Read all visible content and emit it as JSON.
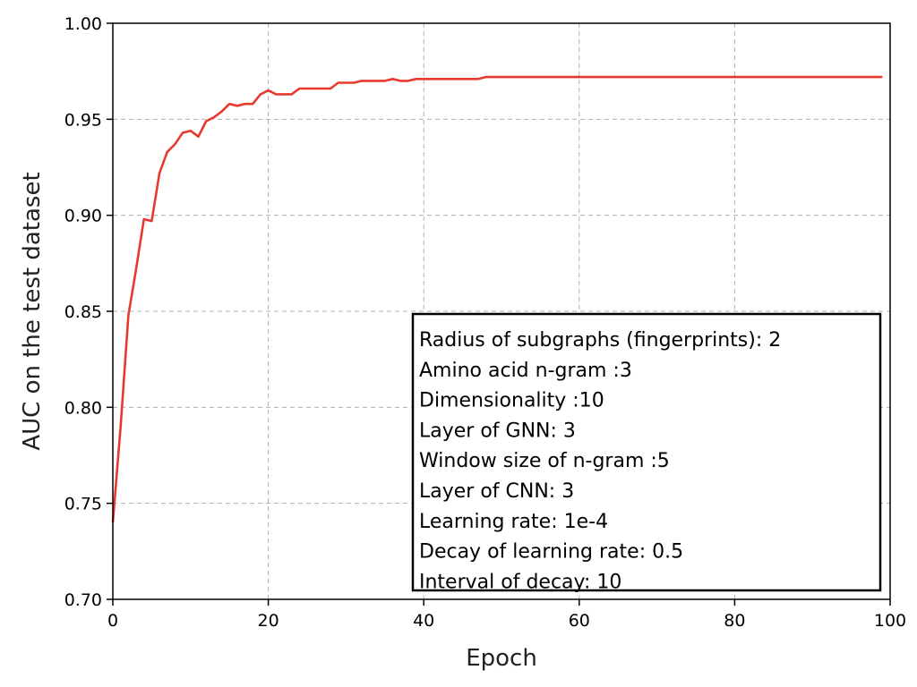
{
  "chart_data": {
    "type": "line",
    "xlabel": "Epoch",
    "ylabel": "AUC on the test dataset",
    "xlim": [
      0,
      100
    ],
    "ylim": [
      0.7,
      1.0
    ],
    "x_ticks": [
      "0",
      "20",
      "40",
      "60",
      "80",
      "100"
    ],
    "y_ticks": [
      "0.70",
      "0.75",
      "0.80",
      "0.85",
      "0.90",
      "0.95",
      "1.00"
    ],
    "grid": true,
    "series": [
      {
        "color": "#e8392f",
        "x": [
          0,
          1,
          2,
          3,
          4,
          5,
          6,
          7,
          8,
          9,
          10,
          11,
          12,
          13,
          14,
          15,
          16,
          17,
          18,
          19,
          20,
          21,
          22,
          23,
          24,
          25,
          26,
          27,
          28,
          29,
          30,
          31,
          32,
          33,
          34,
          35,
          36,
          37,
          38,
          39,
          40,
          41,
          42,
          43,
          44,
          45,
          46,
          47,
          48,
          49,
          50,
          51,
          52,
          53,
          54,
          55,
          56,
          57,
          58,
          59,
          60,
          61,
          62,
          63,
          64,
          65,
          66,
          67,
          68,
          69,
          70,
          71,
          72,
          73,
          74,
          75,
          76,
          77,
          78,
          79,
          80,
          81,
          82,
          83,
          84,
          85,
          86,
          87,
          88,
          89,
          90,
          91,
          92,
          93,
          94,
          95,
          96,
          97,
          98,
          99
        ],
        "y": [
          0.74,
          0.79,
          0.848,
          0.872,
          0.898,
          0.897,
          0.922,
          0.933,
          0.937,
          0.943,
          0.944,
          0.941,
          0.949,
          0.951,
          0.954,
          0.958,
          0.957,
          0.958,
          0.958,
          0.963,
          0.965,
          0.963,
          0.963,
          0.963,
          0.966,
          0.966,
          0.966,
          0.966,
          0.966,
          0.969,
          0.969,
          0.969,
          0.97,
          0.97,
          0.97,
          0.97,
          0.971,
          0.97,
          0.97,
          0.971,
          0.971,
          0.971,
          0.971,
          0.971,
          0.971,
          0.971,
          0.971,
          0.971,
          0.972,
          0.972,
          0.972,
          0.972,
          0.972,
          0.972,
          0.972,
          0.972,
          0.972,
          0.972,
          0.972,
          0.972,
          0.972,
          0.972,
          0.972,
          0.972,
          0.972,
          0.972,
          0.972,
          0.972,
          0.972,
          0.972,
          0.972,
          0.972,
          0.972,
          0.972,
          0.972,
          0.972,
          0.972,
          0.972,
          0.972,
          0.972,
          0.972,
          0.972,
          0.972,
          0.972,
          0.972,
          0.972,
          0.972,
          0.972,
          0.972,
          0.972,
          0.972,
          0.972,
          0.972,
          0.972,
          0.972,
          0.972,
          0.972,
          0.972,
          0.972,
          0.972
        ]
      }
    ],
    "annotation_lines": [
      "Radius of subgraphs (fingerprints): 2",
      "Amino acid n-gram :3",
      "Dimensionality :10",
      "Layer of GNN: 3",
      "Window size of n-gram :5",
      "Layer of CNN: 3",
      "Learning rate: 1e-4",
      "Decay of learning rate: 0.5",
      "Interval of decay: 10"
    ],
    "annotation_placement": "bottom-right"
  }
}
